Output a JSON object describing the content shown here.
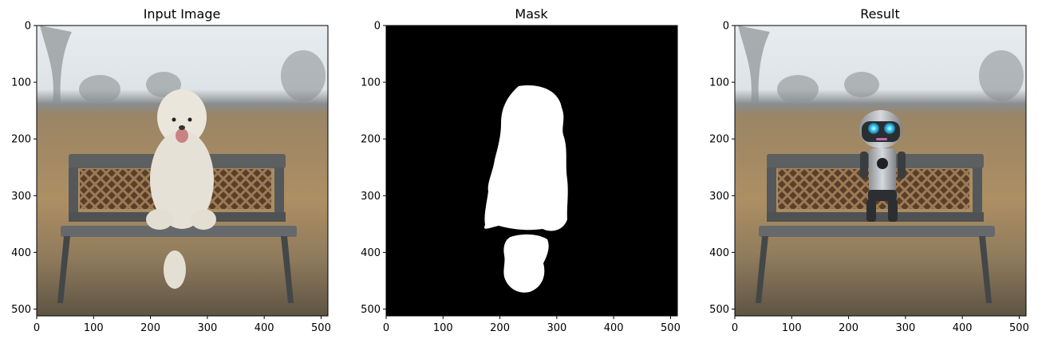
{
  "chart_data": [
    {
      "type": "image",
      "title": "Input Image",
      "xlim": [
        0,
        512
      ],
      "ylim": [
        512,
        0
      ],
      "xticks": [
        0,
        100,
        200,
        300,
        400,
        500
      ],
      "yticks": [
        0,
        100,
        200,
        300,
        400,
        500
      ],
      "grid": false
    },
    {
      "type": "image",
      "title": "Mask",
      "xlim": [
        0,
        512
      ],
      "ylim": [
        512,
        0
      ],
      "xticks": [
        0,
        100,
        200,
        300,
        400,
        500
      ],
      "yticks": [
        0,
        100,
        200,
        300,
        400,
        500
      ],
      "grid": false
    },
    {
      "type": "image",
      "title": "Result",
      "xlim": [
        0,
        512
      ],
      "ylim": [
        512,
        0
      ],
      "xticks": [
        0,
        100,
        200,
        300,
        400,
        500
      ],
      "yticks": [
        0,
        100,
        200,
        300,
        400,
        500
      ],
      "grid": false
    }
  ],
  "colors": {
    "sky": "#dfe6ea",
    "treeline": "#7d8287",
    "field": "#a88c63",
    "ground": "#6e634f",
    "bench": "#5c5f60",
    "lattice": "#7a5a3c",
    "dog": "#e8e3d7",
    "mask_bg": "#000000",
    "mask_fg": "#ffffff",
    "robot_body": "#b9bcbf",
    "robot_eye": "#36c6f0"
  }
}
